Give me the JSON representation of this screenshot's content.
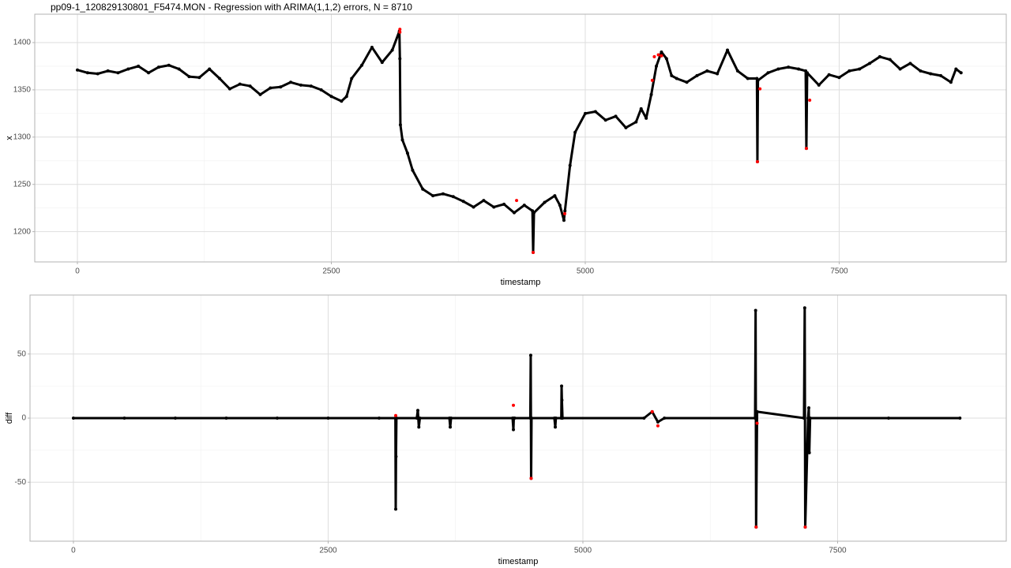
{
  "chart_data": [
    {
      "type": "line",
      "title": "pp09-1_120829130801_F5474.MON - Regression with ARIMA(1,1,2) errors, N = 8710",
      "xlabel": "timestamp",
      "ylabel": "x",
      "xlim": [
        -420,
        9145
      ],
      "ylim": [
        1168,
        1430
      ],
      "xticks": [
        0,
        2500,
        5000,
        7500
      ],
      "yticks": [
        1200,
        1250,
        1300,
        1350,
        1400
      ],
      "grid": true,
      "series": [
        {
          "color": "#000000",
          "style": "line",
          "x": [
            0,
            100,
            200,
            300,
            400,
            500,
            600,
            700,
            800,
            900,
            1000,
            1100,
            1200,
            1300,
            1400,
            1500,
            1600,
            1700,
            1800,
            1900,
            2000,
            2100,
            2200,
            2300,
            2400,
            2500,
            2600,
            2650,
            2700,
            2800,
            2900,
            3000,
            3100,
            3170,
            3175,
            3180,
            3200,
            3250,
            3300,
            3400,
            3500,
            3600,
            3700,
            3800,
            3900,
            4000,
            4100,
            4200,
            4300,
            4400,
            4480,
            4487,
            4495,
            4600,
            4700,
            4750,
            4790,
            4800,
            4850,
            4900,
            5000,
            5100,
            5200,
            5300,
            5400,
            5500,
            5550,
            5600,
            5650,
            5700,
            5750,
            5800,
            5850,
            5900,
            6000,
            6100,
            6200,
            6300,
            6400,
            6500,
            6600,
            6690,
            6695,
            6700,
            6800,
            6900,
            7000,
            7100,
            7170,
            7177,
            7185,
            7300,
            7400,
            7500,
            7600,
            7700,
            7800,
            7900,
            8000,
            8100,
            8200,
            8300,
            8400,
            8500,
            8600,
            8650,
            8700
          ],
          "values": [
            1371,
            1368,
            1367,
            1370,
            1368,
            1372,
            1375,
            1368,
            1374,
            1376,
            1372,
            1364,
            1363,
            1372,
            1362,
            1351,
            1356,
            1354,
            1345,
            1352,
            1353,
            1358,
            1355,
            1354,
            1350,
            1343,
            1338,
            1343,
            1362,
            1376,
            1395,
            1379,
            1392,
            1412,
            1383,
            1313,
            1297,
            1283,
            1265,
            1245,
            1238,
            1240,
            1237,
            1232,
            1226,
            1233,
            1226,
            1229,
            1220,
            1228,
            1222,
            1178,
            1220,
            1231,
            1238,
            1228,
            1212,
            1222,
            1270,
            1305,
            1325,
            1327,
            1318,
            1322,
            1310,
            1316,
            1330,
            1320,
            1345,
            1375,
            1390,
            1383,
            1365,
            1362,
            1358,
            1365,
            1370,
            1367,
            1392,
            1370,
            1362,
            1362,
            1274,
            1360,
            1368,
            1372,
            1374,
            1372,
            1370,
            1288,
            1368,
            1355,
            1366,
            1363,
            1370,
            1372,
            1378,
            1385,
            1382,
            1372,
            1378,
            1370,
            1367,
            1365,
            1358,
            1372,
            1368
          ]
        },
        {
          "color": "#ff0000",
          "style": "points",
          "x": [
            3175,
            3175,
            4324,
            4487,
            4798,
            5660,
            5680,
            5720,
            5750,
            6695,
            6720,
            7177,
            7210
          ],
          "values": [
            1414,
            1411,
            1233,
            1178,
            1219,
            1360,
            1385,
            1387,
            1386,
            1274,
            1351,
            1288,
            1339
          ]
        }
      ]
    },
    {
      "type": "line",
      "xlabel": "timestamp",
      "ylabel": "diff",
      "xlim": [
        -426,
        9155
      ],
      "ylim": [
        -96,
        96
      ],
      "xticks": [
        0,
        2500,
        5000,
        7500
      ],
      "yticks": [
        -50,
        0,
        50
      ],
      "grid": true,
      "series": [
        {
          "color": "#000000",
          "style": "line",
          "x": [
            0,
            500,
            1000,
            1500,
            2000,
            2500,
            3000,
            3160,
            3163,
            3166,
            3170,
            3370,
            3380,
            3390,
            3400,
            3690,
            3698,
            3706,
            4310,
            4318,
            4322,
            4326,
            4330,
            4484,
            4488,
            4492,
            4496,
            4720,
            4729,
            4735,
            4788,
            4791,
            4794,
            4800,
            5600,
            5680,
            5736,
            5800,
            6690,
            6695,
            6700,
            6710,
            7170,
            7177,
            7182,
            7210,
            7217,
            7222,
            7230,
            8000,
            8700
          ],
          "values": [
            0,
            0,
            0,
            0,
            0,
            0,
            0,
            0,
            -71,
            -30,
            0,
            0,
            6,
            -7,
            0,
            0,
            -7,
            0,
            0,
            -9,
            0,
            0,
            0,
            0,
            49,
            -47,
            0,
            0,
            -7,
            0,
            0,
            25,
            14,
            0,
            0,
            5,
            -3,
            0,
            0,
            84,
            -85,
            5,
            0,
            86,
            -85,
            0,
            8,
            -27,
            0,
            0,
            0
          ]
        },
        {
          "color": "#ff0000",
          "style": "points",
          "x": [
            3163,
            4318,
            4492,
            5680,
            5736,
            6700,
            6710,
            7182
          ],
          "values": [
            2,
            10,
            -47,
            5,
            -6,
            -85,
            -4,
            -85
          ]
        }
      ]
    }
  ]
}
